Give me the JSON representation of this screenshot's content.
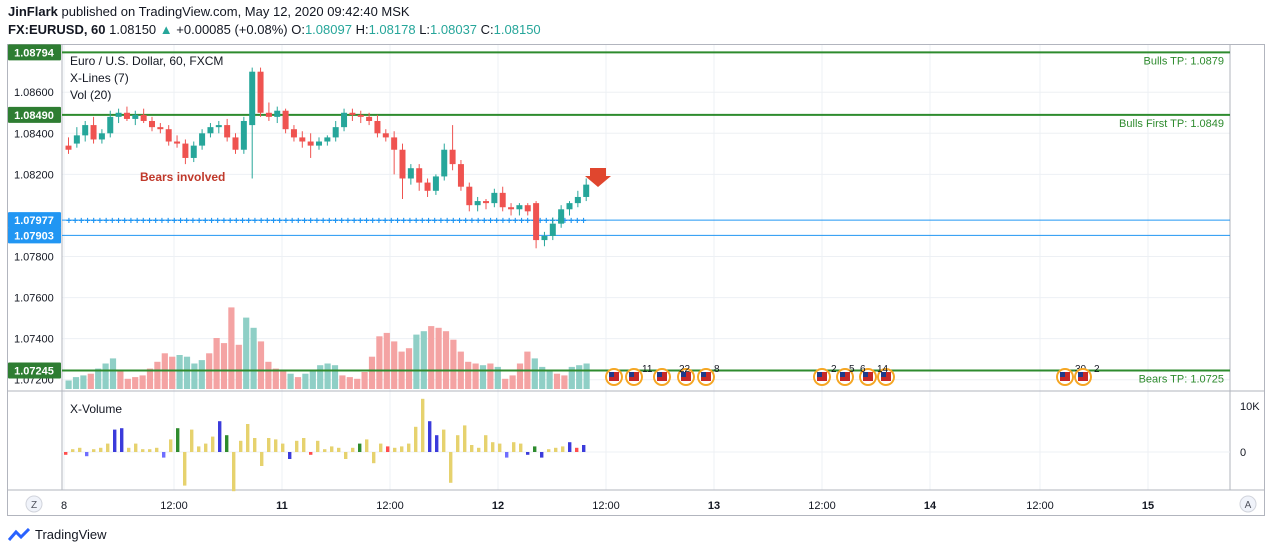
{
  "header": {
    "author": "JinFlark",
    "published": "published on TradingView.com, May 12, 2020 09:42:40 MSK",
    "symbol": "FX:EURUSD, 60",
    "last": "1.08150",
    "change": "+0.00085 (+0.08%)",
    "o_label": "O:",
    "o": "1.08097",
    "h_label": "H:",
    "h": "1.08178",
    "l_label": "L:",
    "l": "1.08037",
    "c_label": "C:",
    "c": "1.08150"
  },
  "logo_text": "TradingView",
  "corner_left": "Z",
  "corner_right": "A",
  "chart_data": {
    "type": "candlestick",
    "title": "Euro / U.S. Dollar, 60, FXCM",
    "indicators": [
      "X-Lines (7)",
      "Vol (20)"
    ],
    "subpane_title": "X-Volume",
    "annotation": "Bears involved",
    "price_axis_ticks": [
      "1.08600",
      "1.08400",
      "1.08200",
      "1.07800",
      "1.07600",
      "1.07400",
      "1.07200"
    ],
    "price_ylim": [
      1.0715,
      1.0883
    ],
    "volume_axis_ticks": [
      "10K",
      "0"
    ],
    "time_axis_ticks": [
      "8",
      "12:00",
      "11",
      "12:00",
      "12",
      "12:00",
      "13",
      "12:00",
      "14",
      "12:00",
      "15"
    ],
    "price_lines": [
      {
        "value": 1.08794,
        "badge": "1.08794",
        "label": "Bulls TP: 1.0879",
        "color": "#2e8b2e"
      },
      {
        "value": 1.0849,
        "badge": "1.08490",
        "label": "Bulls First TP: 1.0849",
        "color": "#2e8b2e"
      },
      {
        "value": 1.07245,
        "badge": "1.07245",
        "label": "Bears TP: 1.0725",
        "color": "#2e8b2e"
      },
      {
        "value": 1.07977,
        "badge": "1.07977",
        "label": "",
        "color": "#2196f3"
      },
      {
        "value": 1.07903,
        "badge": "1.07903",
        "label": "",
        "color": "#2196f3"
      }
    ],
    "events": [
      {
        "label": "11",
        "flags": 2
      },
      {
        "label": "22",
        "flags": 2
      },
      {
        "label": "8",
        "flags": 2
      },
      {
        "label": "2",
        "flags": 1
      },
      {
        "label": "5",
        "flags": 1
      },
      {
        "label": "6",
        "flags": 1
      },
      {
        "label": "14",
        "flags": 1
      },
      {
        "label": "30",
        "flags": 1
      },
      {
        "label": "2",
        "flags": 1
      }
    ],
    "candles": [
      [
        1.0834,
        1.0838,
        1.083,
        1.0832
      ],
      [
        1.0835,
        1.0843,
        1.0833,
        1.0839
      ],
      [
        1.0839,
        1.0846,
        1.0836,
        1.0844
      ],
      [
        1.0844,
        1.0848,
        1.0835,
        1.0837
      ],
      [
        1.0837,
        1.0842,
        1.0835,
        1.084
      ],
      [
        1.084,
        1.0851,
        1.0838,
        1.0848
      ],
      [
        1.0848,
        1.0852,
        1.0845,
        1.085
      ],
      [
        1.085,
        1.0853,
        1.0846,
        1.0847
      ],
      [
        1.0847,
        1.0851,
        1.0844,
        1.0849
      ],
      [
        1.0849,
        1.0852,
        1.0845,
        1.0846
      ],
      [
        1.0846,
        1.0848,
        1.0841,
        1.0843
      ],
      [
        1.0843,
        1.0845,
        1.084,
        1.0842
      ],
      [
        1.0842,
        1.0844,
        1.0834,
        1.0836
      ],
      [
        1.0836,
        1.0839,
        1.0833,
        1.0835
      ],
      [
        1.0835,
        1.0837,
        1.0825,
        1.0828
      ],
      [
        1.0828,
        1.0836,
        1.0826,
        1.0834
      ],
      [
        1.0834,
        1.0842,
        1.0832,
        1.084
      ],
      [
        1.084,
        1.0845,
        1.0838,
        1.0843
      ],
      [
        1.0843,
        1.0846,
        1.084,
        1.0844
      ],
      [
        1.0844,
        1.0847,
        1.0836,
        1.0838
      ],
      [
        1.0838,
        1.084,
        1.083,
        1.0832
      ],
      [
        1.0832,
        1.0848,
        1.083,
        1.0846
      ],
      [
        1.0844,
        1.0872,
        1.0818,
        1.087
      ],
      [
        1.087,
        1.0872,
        1.0848,
        1.085
      ],
      [
        1.085,
        1.0855,
        1.0846,
        1.0848
      ],
      [
        1.0848,
        1.0853,
        1.0845,
        1.0851
      ],
      [
        1.0851,
        1.0852,
        1.084,
        1.0842
      ],
      [
        1.0842,
        1.0844,
        1.0836,
        1.0838
      ],
      [
        1.0838,
        1.0841,
        1.0833,
        1.0836
      ],
      [
        1.0836,
        1.084,
        1.0828,
        1.0834
      ],
      [
        1.0834,
        1.0838,
        1.0832,
        1.0836
      ],
      [
        1.0836,
        1.0839,
        1.0834,
        1.0838
      ],
      [
        1.0838,
        1.0846,
        1.0836,
        1.0843
      ],
      [
        1.0843,
        1.0852,
        1.0841,
        1.085
      ],
      [
        1.085,
        1.0852,
        1.0846,
        1.0849
      ],
      [
        1.0849,
        1.0851,
        1.0845,
        1.0848
      ],
      [
        1.0848,
        1.085,
        1.0844,
        1.0846
      ],
      [
        1.0846,
        1.0849,
        1.0838,
        1.084
      ],
      [
        1.084,
        1.0842,
        1.0836,
        1.0838
      ],
      [
        1.0838,
        1.0841,
        1.082,
        1.0832
      ],
      [
        1.0832,
        1.0835,
        1.0808,
        1.0818
      ],
      [
        1.0818,
        1.0825,
        1.0815,
        1.0823
      ],
      [
        1.0823,
        1.0825,
        1.0812,
        1.0816
      ],
      [
        1.0816,
        1.0818,
        1.0809,
        1.0812
      ],
      [
        1.0812,
        1.082,
        1.081,
        1.0819
      ],
      [
        1.0819,
        1.0835,
        1.0817,
        1.0832
      ],
      [
        1.0832,
        1.0844,
        1.0822,
        1.0825
      ],
      [
        1.0825,
        1.0827,
        1.0812,
        1.0814
      ],
      [
        1.0814,
        1.0816,
        1.0802,
        1.0805
      ],
      [
        1.0805,
        1.0809,
        1.0802,
        1.0807
      ],
      [
        1.0807,
        1.0808,
        1.0803,
        1.0806
      ],
      [
        1.0806,
        1.0813,
        1.0804,
        1.0811
      ],
      [
        1.0811,
        1.0814,
        1.0802,
        1.0804
      ],
      [
        1.0804,
        1.0806,
        1.08,
        1.0803
      ],
      [
        1.0803,
        1.0806,
        1.08,
        1.0805
      ],
      [
        1.0805,
        1.0806,
        1.08,
        1.0802
      ],
      [
        1.0806,
        1.0807,
        1.0784,
        1.0788
      ],
      [
        1.0788,
        1.0792,
        1.0785,
        1.079
      ],
      [
        1.079,
        1.0799,
        1.0788,
        1.0796
      ],
      [
        1.0796,
        1.0805,
        1.0794,
        1.0803
      ],
      [
        1.0803,
        1.0807,
        1.08,
        1.0806
      ],
      [
        1.0806,
        1.0812,
        1.0804,
        1.0809
      ],
      [
        1.0809,
        1.0818,
        1.0807,
        1.0815
      ]
    ],
    "volume": [
      {
        "v": 0.5,
        "up": 1
      },
      {
        "v": 0.7,
        "up": 1
      },
      {
        "v": 0.8,
        "up": 1
      },
      {
        "v": 0.9,
        "up": 0
      },
      {
        "v": 1.2,
        "up": 1
      },
      {
        "v": 1.5,
        "up": 1
      },
      {
        "v": 1.8,
        "up": 1
      },
      {
        "v": 1.1,
        "up": 0
      },
      {
        "v": 0.6,
        "up": 0
      },
      {
        "v": 0.7,
        "up": 0
      },
      {
        "v": 0.8,
        "up": 0
      },
      {
        "v": 1.2,
        "up": 0
      },
      {
        "v": 1.6,
        "up": 0
      },
      {
        "v": 2.1,
        "up": 0
      },
      {
        "v": 1.9,
        "up": 0
      },
      {
        "v": 2.0,
        "up": 1
      },
      {
        "v": 1.9,
        "up": 1
      },
      {
        "v": 1.5,
        "up": 1
      },
      {
        "v": 1.7,
        "up": 1
      },
      {
        "v": 2.1,
        "up": 0
      },
      {
        "v": 3.0,
        "up": 0
      },
      {
        "v": 2.7,
        "up": 0
      },
      {
        "v": 4.8,
        "up": 0
      },
      {
        "v": 2.6,
        "up": 0
      },
      {
        "v": 4.2,
        "up": 1
      },
      {
        "v": 3.6,
        "up": 1
      },
      {
        "v": 2.8,
        "up": 0
      },
      {
        "v": 1.6,
        "up": 0
      },
      {
        "v": 1.2,
        "up": 0
      },
      {
        "v": 1.1,
        "up": 0
      },
      {
        "v": 0.9,
        "up": 1
      },
      {
        "v": 0.7,
        "up": 0
      },
      {
        "v": 0.9,
        "up": 1
      },
      {
        "v": 1.1,
        "up": 1
      },
      {
        "v": 1.4,
        "up": 1
      },
      {
        "v": 1.5,
        "up": 1
      },
      {
        "v": 1.4,
        "up": 1
      },
      {
        "v": 0.8,
        "up": 0
      },
      {
        "v": 0.7,
        "up": 0
      },
      {
        "v": 0.6,
        "up": 0
      },
      {
        "v": 1.0,
        "up": 0
      },
      {
        "v": 1.9,
        "up": 0
      },
      {
        "v": 3.1,
        "up": 0
      },
      {
        "v": 3.3,
        "up": 0
      },
      {
        "v": 2.8,
        "up": 0
      },
      {
        "v": 2.2,
        "up": 0
      },
      {
        "v": 2.4,
        "up": 0
      },
      {
        "v": 3.2,
        "up": 1
      },
      {
        "v": 3.4,
        "up": 1
      },
      {
        "v": 3.7,
        "up": 0
      },
      {
        "v": 3.6,
        "up": 0
      },
      {
        "v": 3.4,
        "up": 0
      },
      {
        "v": 2.9,
        "up": 0
      },
      {
        "v": 2.2,
        "up": 0
      },
      {
        "v": 1.6,
        "up": 0
      },
      {
        "v": 1.5,
        "up": 0
      },
      {
        "v": 1.4,
        "up": 1
      },
      {
        "v": 1.5,
        "up": 0
      },
      {
        "v": 1.3,
        "up": 1
      },
      {
        "v": 0.6,
        "up": 0
      },
      {
        "v": 0.8,
        "up": 0
      },
      {
        "v": 1.5,
        "up": 0
      },
      {
        "v": 2.2,
        "up": 0
      },
      {
        "v": 1.8,
        "up": 1
      },
      {
        "v": 1.3,
        "up": 1
      },
      {
        "v": 1.1,
        "up": 1
      },
      {
        "v": 0.9,
        "up": 0
      },
      {
        "v": 0.8,
        "up": 0
      },
      {
        "v": 1.3,
        "up": 1
      },
      {
        "v": 1.4,
        "up": 1
      },
      {
        "v": 1.5,
        "up": 1
      }
    ],
    "xvolume": [
      {
        "v": -0.1,
        "c": "#ff4d4d"
      },
      {
        "v": 0.1,
        "c": "#e6d26e"
      },
      {
        "v": 0.15,
        "c": "#e6d26e"
      },
      {
        "v": -0.15,
        "c": "#6e6eff"
      },
      {
        "v": 0.1,
        "c": "#e6d26e"
      },
      {
        "v": 0.15,
        "c": "#e6d26e"
      },
      {
        "v": 0.3,
        "c": "#e6d26e"
      },
      {
        "v": 0.8,
        "c": "#3b3bdb"
      },
      {
        "v": 0.85,
        "c": "#3b3bdb"
      },
      {
        "v": 0.15,
        "c": "#e6d26e"
      },
      {
        "v": 0.3,
        "c": "#e6d26e"
      },
      {
        "v": 0.1,
        "c": "#e6d26e"
      },
      {
        "v": 0.1,
        "c": "#e6d26e"
      },
      {
        "v": 0.15,
        "c": "#e6d26e"
      },
      {
        "v": -0.2,
        "c": "#6e6eff"
      },
      {
        "v": 0.45,
        "c": "#e6d26e"
      },
      {
        "v": 0.85,
        "c": "#2e8b2e"
      },
      {
        "v": -1.2,
        "c": "#e6d26e"
      },
      {
        "v": 0.8,
        "c": "#e6d26e"
      },
      {
        "v": 0.2,
        "c": "#e6d26e"
      },
      {
        "v": 0.3,
        "c": "#e6d26e"
      },
      {
        "v": 0.55,
        "c": "#e6d26e"
      },
      {
        "v": 1.1,
        "c": "#3b3bdb"
      },
      {
        "v": 0.6,
        "c": "#2e8b2e"
      },
      {
        "v": -1.4,
        "c": "#e6d26e"
      },
      {
        "v": 0.4,
        "c": "#e6d26e"
      },
      {
        "v": 1.0,
        "c": "#e6d26e"
      },
      {
        "v": 0.5,
        "c": "#e6d26e"
      },
      {
        "v": -0.5,
        "c": "#e6d26e"
      },
      {
        "v": 0.5,
        "c": "#e6d26e"
      },
      {
        "v": 0.45,
        "c": "#e6d26e"
      },
      {
        "v": 0.3,
        "c": "#e6d26e"
      },
      {
        "v": -0.25,
        "c": "#3b3bdb"
      },
      {
        "v": 0.4,
        "c": "#e6d26e"
      },
      {
        "v": 0.5,
        "c": "#e6d26e"
      },
      {
        "v": -0.1,
        "c": "#ff4d4d"
      },
      {
        "v": 0.4,
        "c": "#e6d26e"
      },
      {
        "v": 0.1,
        "c": "#e6d26e"
      },
      {
        "v": 0.2,
        "c": "#e6d26e"
      },
      {
        "v": 0.15,
        "c": "#e6d26e"
      },
      {
        "v": -0.25,
        "c": "#e6d26e"
      },
      {
        "v": 0.15,
        "c": "#e6d26e"
      },
      {
        "v": 0.3,
        "c": "#2e8b2e"
      },
      {
        "v": 0.45,
        "c": "#e6d26e"
      },
      {
        "v": -0.4,
        "c": "#e6d26e"
      },
      {
        "v": 0.3,
        "c": "#e6d26e"
      },
      {
        "v": 0.2,
        "c": "#ff4d4d"
      },
      {
        "v": 0.15,
        "c": "#e6d26e"
      },
      {
        "v": 0.2,
        "c": "#e6d26e"
      },
      {
        "v": 0.3,
        "c": "#e6d26e"
      },
      {
        "v": 0.9,
        "c": "#e6d26e"
      },
      {
        "v": 1.9,
        "c": "#e6d26e"
      },
      {
        "v": 1.1,
        "c": "#3b3bdb"
      },
      {
        "v": 0.6,
        "c": "#3b3bdb"
      },
      {
        "v": 0.8,
        "c": "#e6d26e"
      },
      {
        "v": -1.1,
        "c": "#e6d26e"
      },
      {
        "v": 0.6,
        "c": "#e6d26e"
      },
      {
        "v": 0.95,
        "c": "#e6d26e"
      },
      {
        "v": 0.25,
        "c": "#e6d26e"
      },
      {
        "v": 0.15,
        "c": "#e6d26e"
      },
      {
        "v": 0.6,
        "c": "#e6d26e"
      },
      {
        "v": 0.35,
        "c": "#e6d26e"
      },
      {
        "v": 0.3,
        "c": "#e6d26e"
      },
      {
        "v": -0.2,
        "c": "#6e6eff"
      },
      {
        "v": 0.35,
        "c": "#e6d26e"
      },
      {
        "v": 0.3,
        "c": "#e6d26e"
      },
      {
        "v": -0.1,
        "c": "#3b3bdb"
      },
      {
        "v": 0.2,
        "c": "#2e8b2e"
      },
      {
        "v": -0.2,
        "c": "#3b3bdb"
      },
      {
        "v": 0.1,
        "c": "#e6d26e"
      },
      {
        "v": 0.15,
        "c": "#e6d26e"
      },
      {
        "v": 0.2,
        "c": "#e6d26e"
      },
      {
        "v": 0.35,
        "c": "#3b3bdb"
      },
      {
        "v": 0.15,
        "c": "#ff4d4d"
      },
      {
        "v": 0.25,
        "c": "#3b3bdb"
      }
    ],
    "colors": {
      "up": "#26a69a",
      "down": "#ef5350",
      "vol_up": "#8fcfc6",
      "vol_down": "#f4a3a3",
      "green_line": "#2e8b2e",
      "blue_line": "#2196f3",
      "badge_green": "#2e7d32",
      "badge_blue": "#2196f3",
      "arrow": "#e0462e",
      "annotation": "#c0392b"
    }
  }
}
